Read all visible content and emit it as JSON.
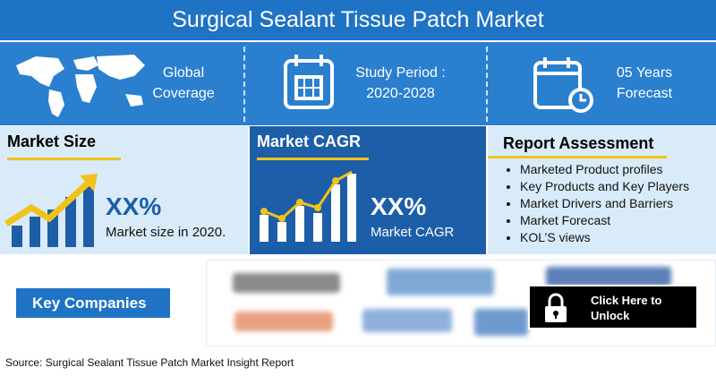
{
  "header": {
    "title": "Surgical Sealant Tissue Patch Market"
  },
  "highlights": [
    {
      "label": "Global Coverage"
    },
    {
      "label": "Study Period : 2020-2028"
    },
    {
      "label": "05 Years Forecast"
    }
  ],
  "market_size": {
    "heading": "Market Size",
    "value": "XX%",
    "caption": "Market size in 2020."
  },
  "market_cagr": {
    "heading": "Market CAGR",
    "value": "XX%",
    "caption": "Market CAGR"
  },
  "report_assessment": {
    "heading": "Report Assessment",
    "items": [
      "Marketed Product profiles",
      "Key Products and Key Players",
      "Market Drivers and Barriers",
      "Market Forecast",
      "KOL’S views"
    ]
  },
  "key_companies": {
    "label": "Key Companies",
    "unlock": "Click Here to Unlock"
  },
  "footer": {
    "source": "Source: Surgical Sealant Tissue Patch Market Insight Report"
  }
}
